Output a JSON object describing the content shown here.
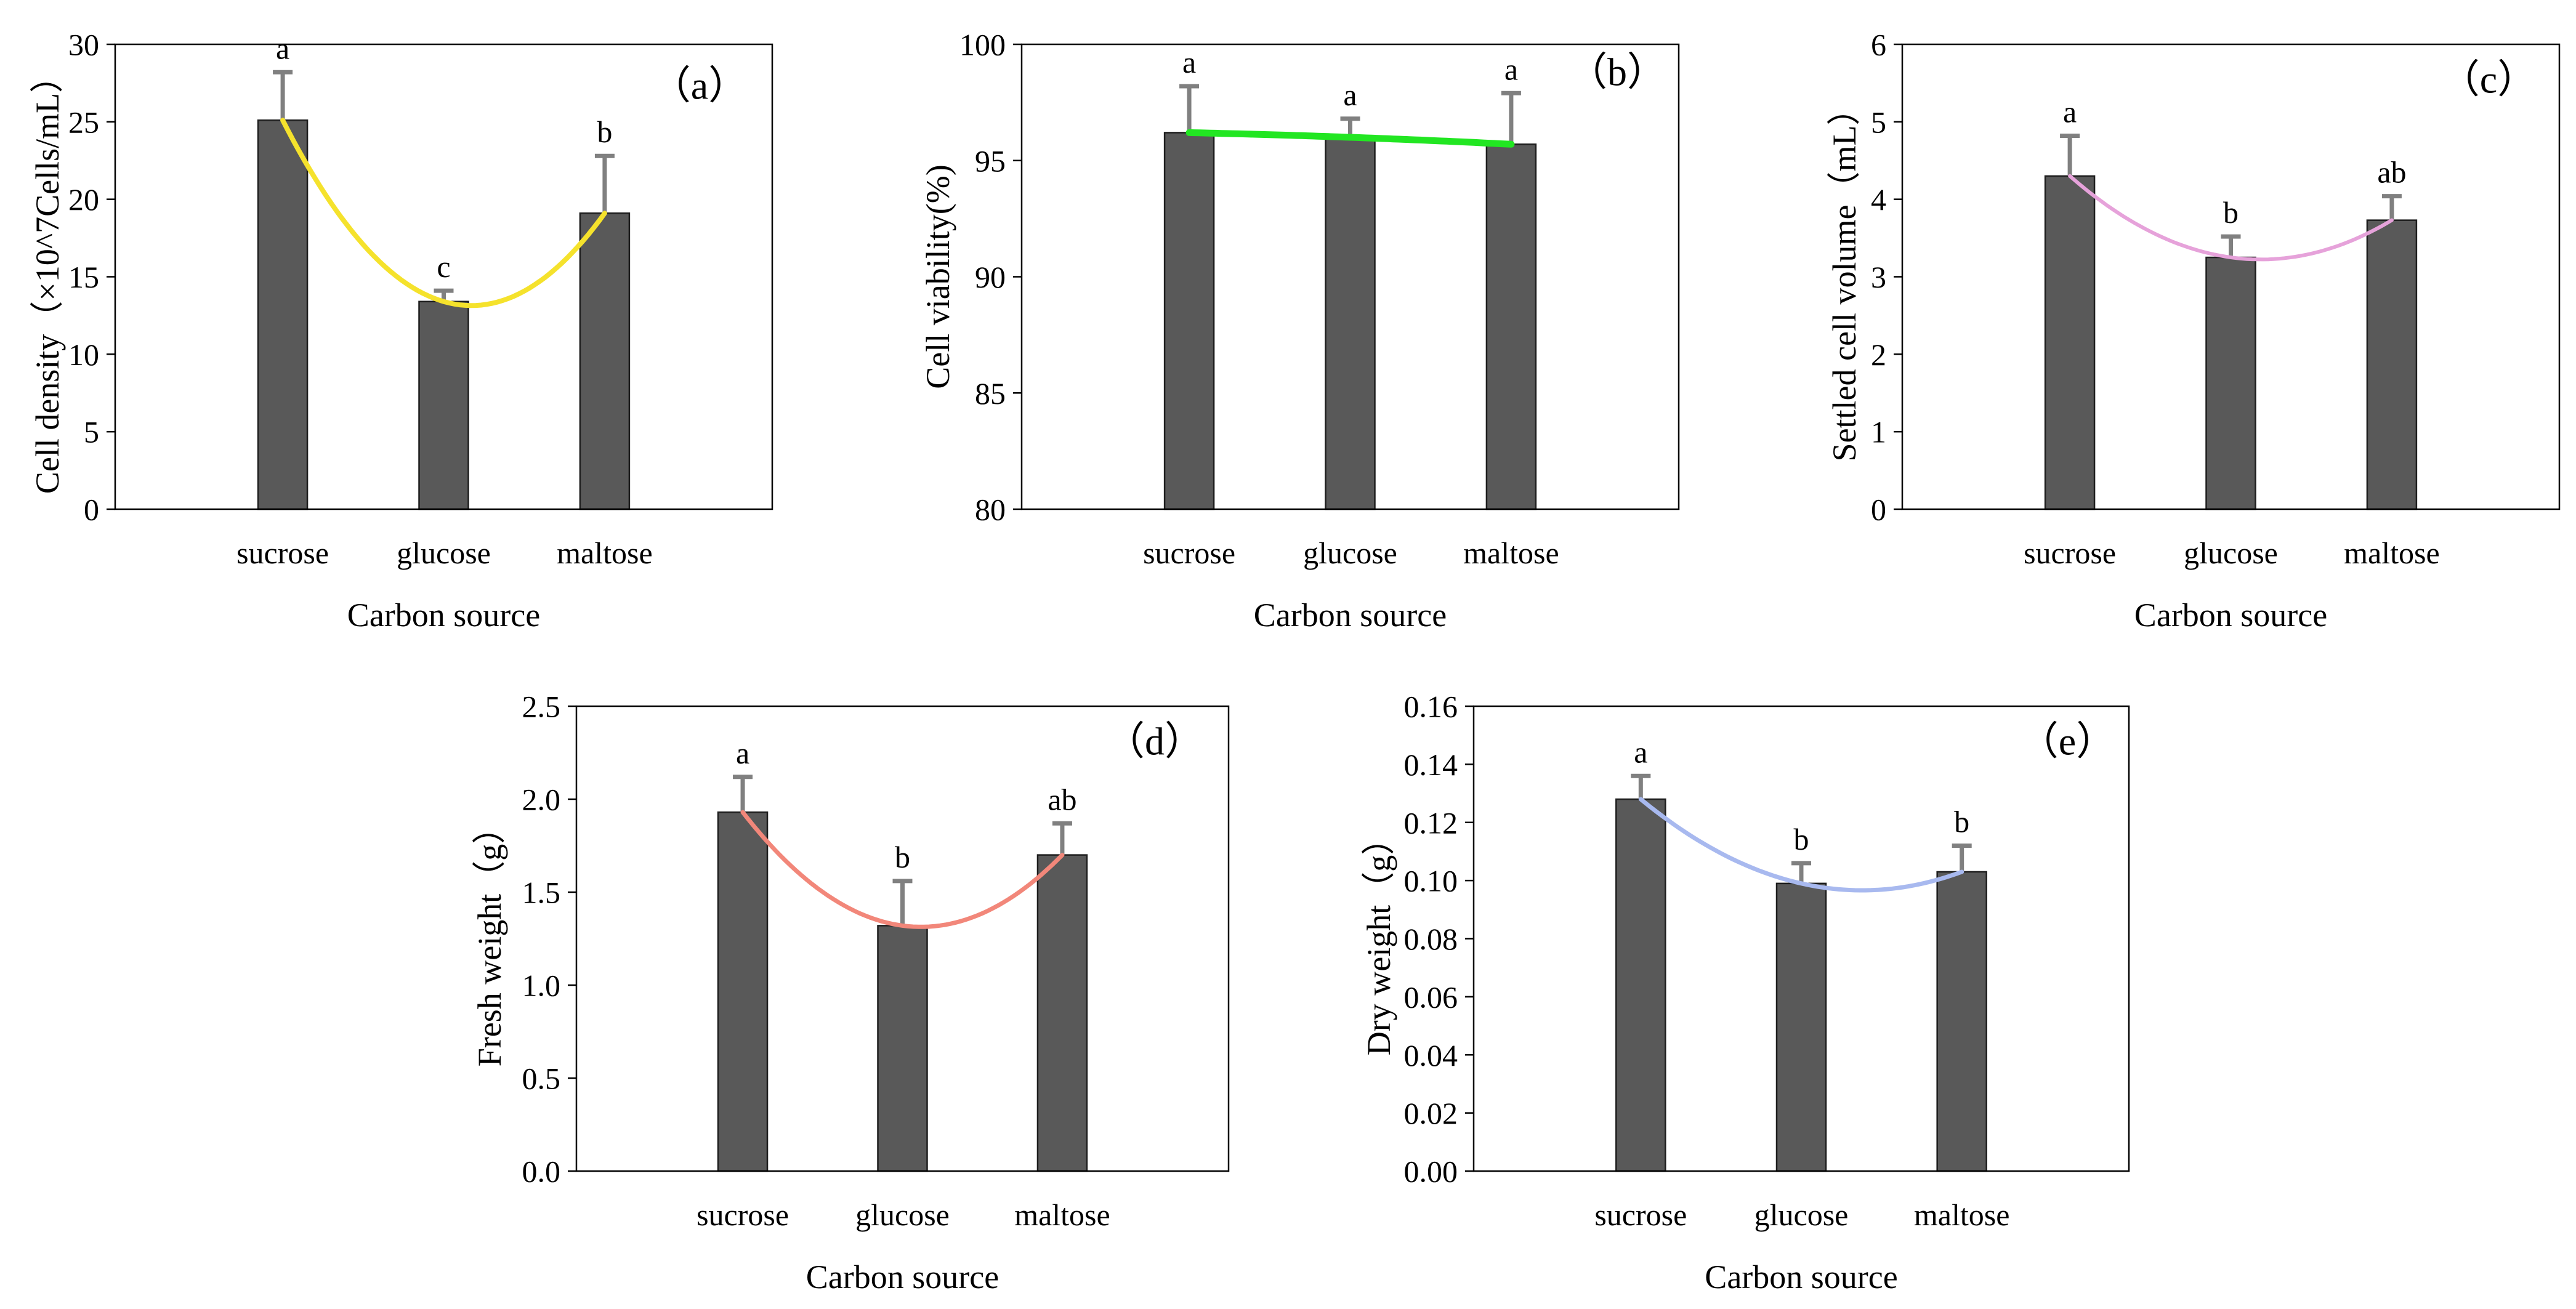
{
  "chart_data": [
    {
      "type": "bar",
      "title": "（a）",
      "xlabel": "Carbon source",
      "ylabel": "Cell density（×10^7Cells/mL）",
      "categories": [
        "sucrose",
        "glucose",
        "maltose"
      ],
      "values": [
        25.1,
        13.4,
        19.1
      ],
      "errors": [
        3.1,
        0.7,
        3.7
      ],
      "letters": [
        "a",
        "c",
        "b"
      ],
      "ylim": [
        0,
        30
      ],
      "yticks": [
        "0",
        "5",
        "10",
        "15",
        "20",
        "25",
        "30"
      ],
      "grid": false,
      "bar_color": "#595959",
      "error_color": "#808080",
      "trend_color": "#f5e22c"
    },
    {
      "type": "bar",
      "title": "（b）",
      "xlabel": "Carbon source",
      "ylabel": "Cell viability(%)",
      "categories": [
        "sucrose",
        "glucose",
        "maltose"
      ],
      "values": [
        96.2,
        96.0,
        95.7
      ],
      "errors": [
        2.0,
        0.8,
        2.2
      ],
      "letters": [
        "a",
        "a",
        "a"
      ],
      "ylim": [
        80,
        100
      ],
      "yticks": [
        "80",
        "85",
        "90",
        "95",
        "100"
      ],
      "grid": false,
      "bar_color": "#595959",
      "error_color": "#808080",
      "trend_color": "#22e622"
    },
    {
      "type": "bar",
      "title": "（c）",
      "xlabel": "Carbon source",
      "ylabel": "Settled cell volume（mL）",
      "categories": [
        "sucrose",
        "glucose",
        "maltose"
      ],
      "values": [
        4.3,
        3.25,
        3.73
      ],
      "errors": [
        0.52,
        0.27,
        0.31
      ],
      "letters": [
        "a",
        "b",
        "ab"
      ],
      "ylim": [
        0,
        6
      ],
      "yticks": [
        "0",
        "1",
        "2",
        "3",
        "4",
        "5",
        "6"
      ],
      "grid": false,
      "bar_color": "#595959",
      "error_color": "#808080",
      "trend_color": "#e6a2da"
    },
    {
      "type": "bar",
      "title": "（d）",
      "xlabel": "Carbon source",
      "ylabel": "Fresh weight（g）",
      "categories": [
        "sucrose",
        "glucose",
        "maltose"
      ],
      "values": [
        1.93,
        1.32,
        1.7
      ],
      "errors": [
        0.19,
        0.24,
        0.17
      ],
      "letters": [
        "a",
        "b",
        "ab"
      ],
      "ylim": [
        0,
        2.5
      ],
      "yticks": [
        "0.0",
        "0.5",
        "1.0",
        "1.5",
        "2.0",
        "2.5"
      ],
      "grid": false,
      "bar_color": "#595959",
      "error_color": "#808080",
      "trend_color": "#f2877a"
    },
    {
      "type": "bar",
      "title": "（e）",
      "xlabel": "Carbon source",
      "ylabel": "Dry weight（g）",
      "categories": [
        "sucrose",
        "glucose",
        "maltose"
      ],
      "values": [
        0.128,
        0.099,
        0.103
      ],
      "errors": [
        0.008,
        0.007,
        0.009
      ],
      "letters": [
        "a",
        "b",
        "b"
      ],
      "ylim": [
        0,
        0.16
      ],
      "yticks": [
        "0.00",
        "0.02",
        "0.04",
        "0.06",
        "0.08",
        "0.10",
        "0.12",
        "0.14",
        "0.16"
      ],
      "grid": false,
      "bar_color": "#595959",
      "error_color": "#808080",
      "trend_color": "#a8b9ef"
    }
  ]
}
